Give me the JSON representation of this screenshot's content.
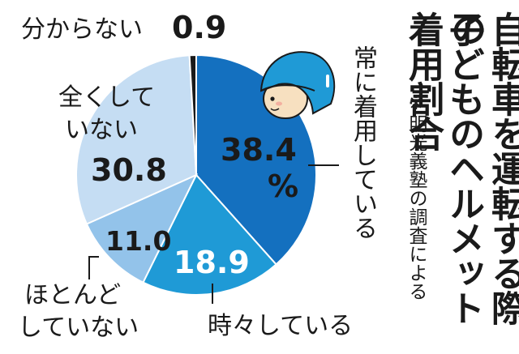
{
  "title_line1": "自転車を運転する際の",
  "title_line2": "子どものヘルメット着用割合",
  "note": "※明光義塾の調査による",
  "chart_data": {
    "type": "pie",
    "unit": "%",
    "slices": [
      {
        "label": "常に着用している",
        "value": 38.4,
        "display": "38.4",
        "color": "#1470bf"
      },
      {
        "label": "時々している",
        "value": 18.9,
        "display": "18.9",
        "color": "#1f9ad6"
      },
      {
        "label": "ほとんどしていない",
        "value": 11.0,
        "display": "11.0",
        "color": "#93c3ea"
      },
      {
        "label": "全くしていない",
        "value": 30.8,
        "display": "30.8",
        "color": "#c5ddf3"
      },
      {
        "label": "分からない",
        "value": 0.9,
        "display": "0.9",
        "color": "#1a1a1a"
      }
    ]
  },
  "labels": {
    "always": "常に着用している",
    "sometimes": "時々している",
    "rarely_line1": "ほとんど",
    "rarely_line2": "していない",
    "never_line1": "全くして",
    "never_line2": "いない",
    "unknown": "分からない"
  },
  "values": {
    "always": "38.4",
    "always_unit": "%",
    "sometimes": "18.9",
    "rarely": "11.0",
    "never": "30.8",
    "unknown": "0.9"
  },
  "icons": {
    "helmet": "helmet-child-icon"
  }
}
